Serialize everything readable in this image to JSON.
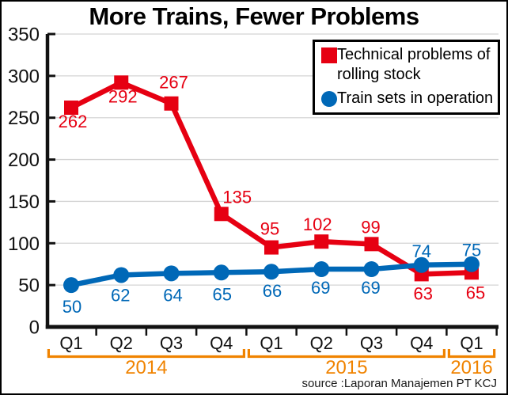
{
  "title": "More Trains, Fewer Problems",
  "legend": {
    "items": [
      {
        "label_line1": "Technical problems of",
        "label_line2": "rolling stock",
        "color": "#e60012",
        "marker": "square"
      },
      {
        "label_line1": "Train sets in operation",
        "label_line2": "",
        "color": "#0068b7",
        "marker": "circle"
      }
    ]
  },
  "source": "source :Laporan Manajemen PT KCJ",
  "chart_data": {
    "type": "line",
    "title": "More Trains, Fewer Problems",
    "categories": [
      "Q1",
      "Q2",
      "Q3",
      "Q4",
      "Q1",
      "Q2",
      "Q3",
      "Q4",
      "Q1"
    ],
    "year_groups": [
      {
        "label": "2014",
        "start": 0,
        "end": 3
      },
      {
        "label": "2015",
        "start": 4,
        "end": 7
      },
      {
        "label": "2016",
        "start": 8,
        "end": 8
      }
    ],
    "ylim": [
      0,
      350
    ],
    "yticks": [
      0,
      50,
      100,
      150,
      200,
      250,
      300,
      350
    ],
    "grid": "horizontal",
    "legend_position": "top-right",
    "colors": {
      "grid": "#d4d4d4",
      "axis": "#111111",
      "year": "#f08300",
      "text": "#111111"
    },
    "series": [
      {
        "name": "Technical problems of rolling stock",
        "color": "#e60012",
        "marker": "square",
        "values": [
          262,
          292,
          267,
          135,
          95,
          102,
          99,
          63,
          65
        ],
        "label_dx": [
          2,
          2,
          3,
          20,
          -2,
          -5,
          -1,
          2,
          5
        ],
        "label_dy": [
          17,
          17,
          -27,
          -22,
          -24,
          -22,
          -22,
          24,
          25
        ]
      },
      {
        "name": "Train sets in operation",
        "color": "#0068b7",
        "marker": "circle",
        "values": [
          50,
          62,
          64,
          65,
          66,
          69,
          69,
          74,
          75
        ],
        "label_dx": [
          1,
          -1,
          2,
          1,
          1,
          -1,
          -1,
          0,
          0
        ],
        "label_dy": [
          27,
          25,
          27,
          27,
          24,
          23,
          23,
          -18,
          -18
        ]
      }
    ],
    "source": "source :Laporan Manajemen PT KCJ"
  }
}
